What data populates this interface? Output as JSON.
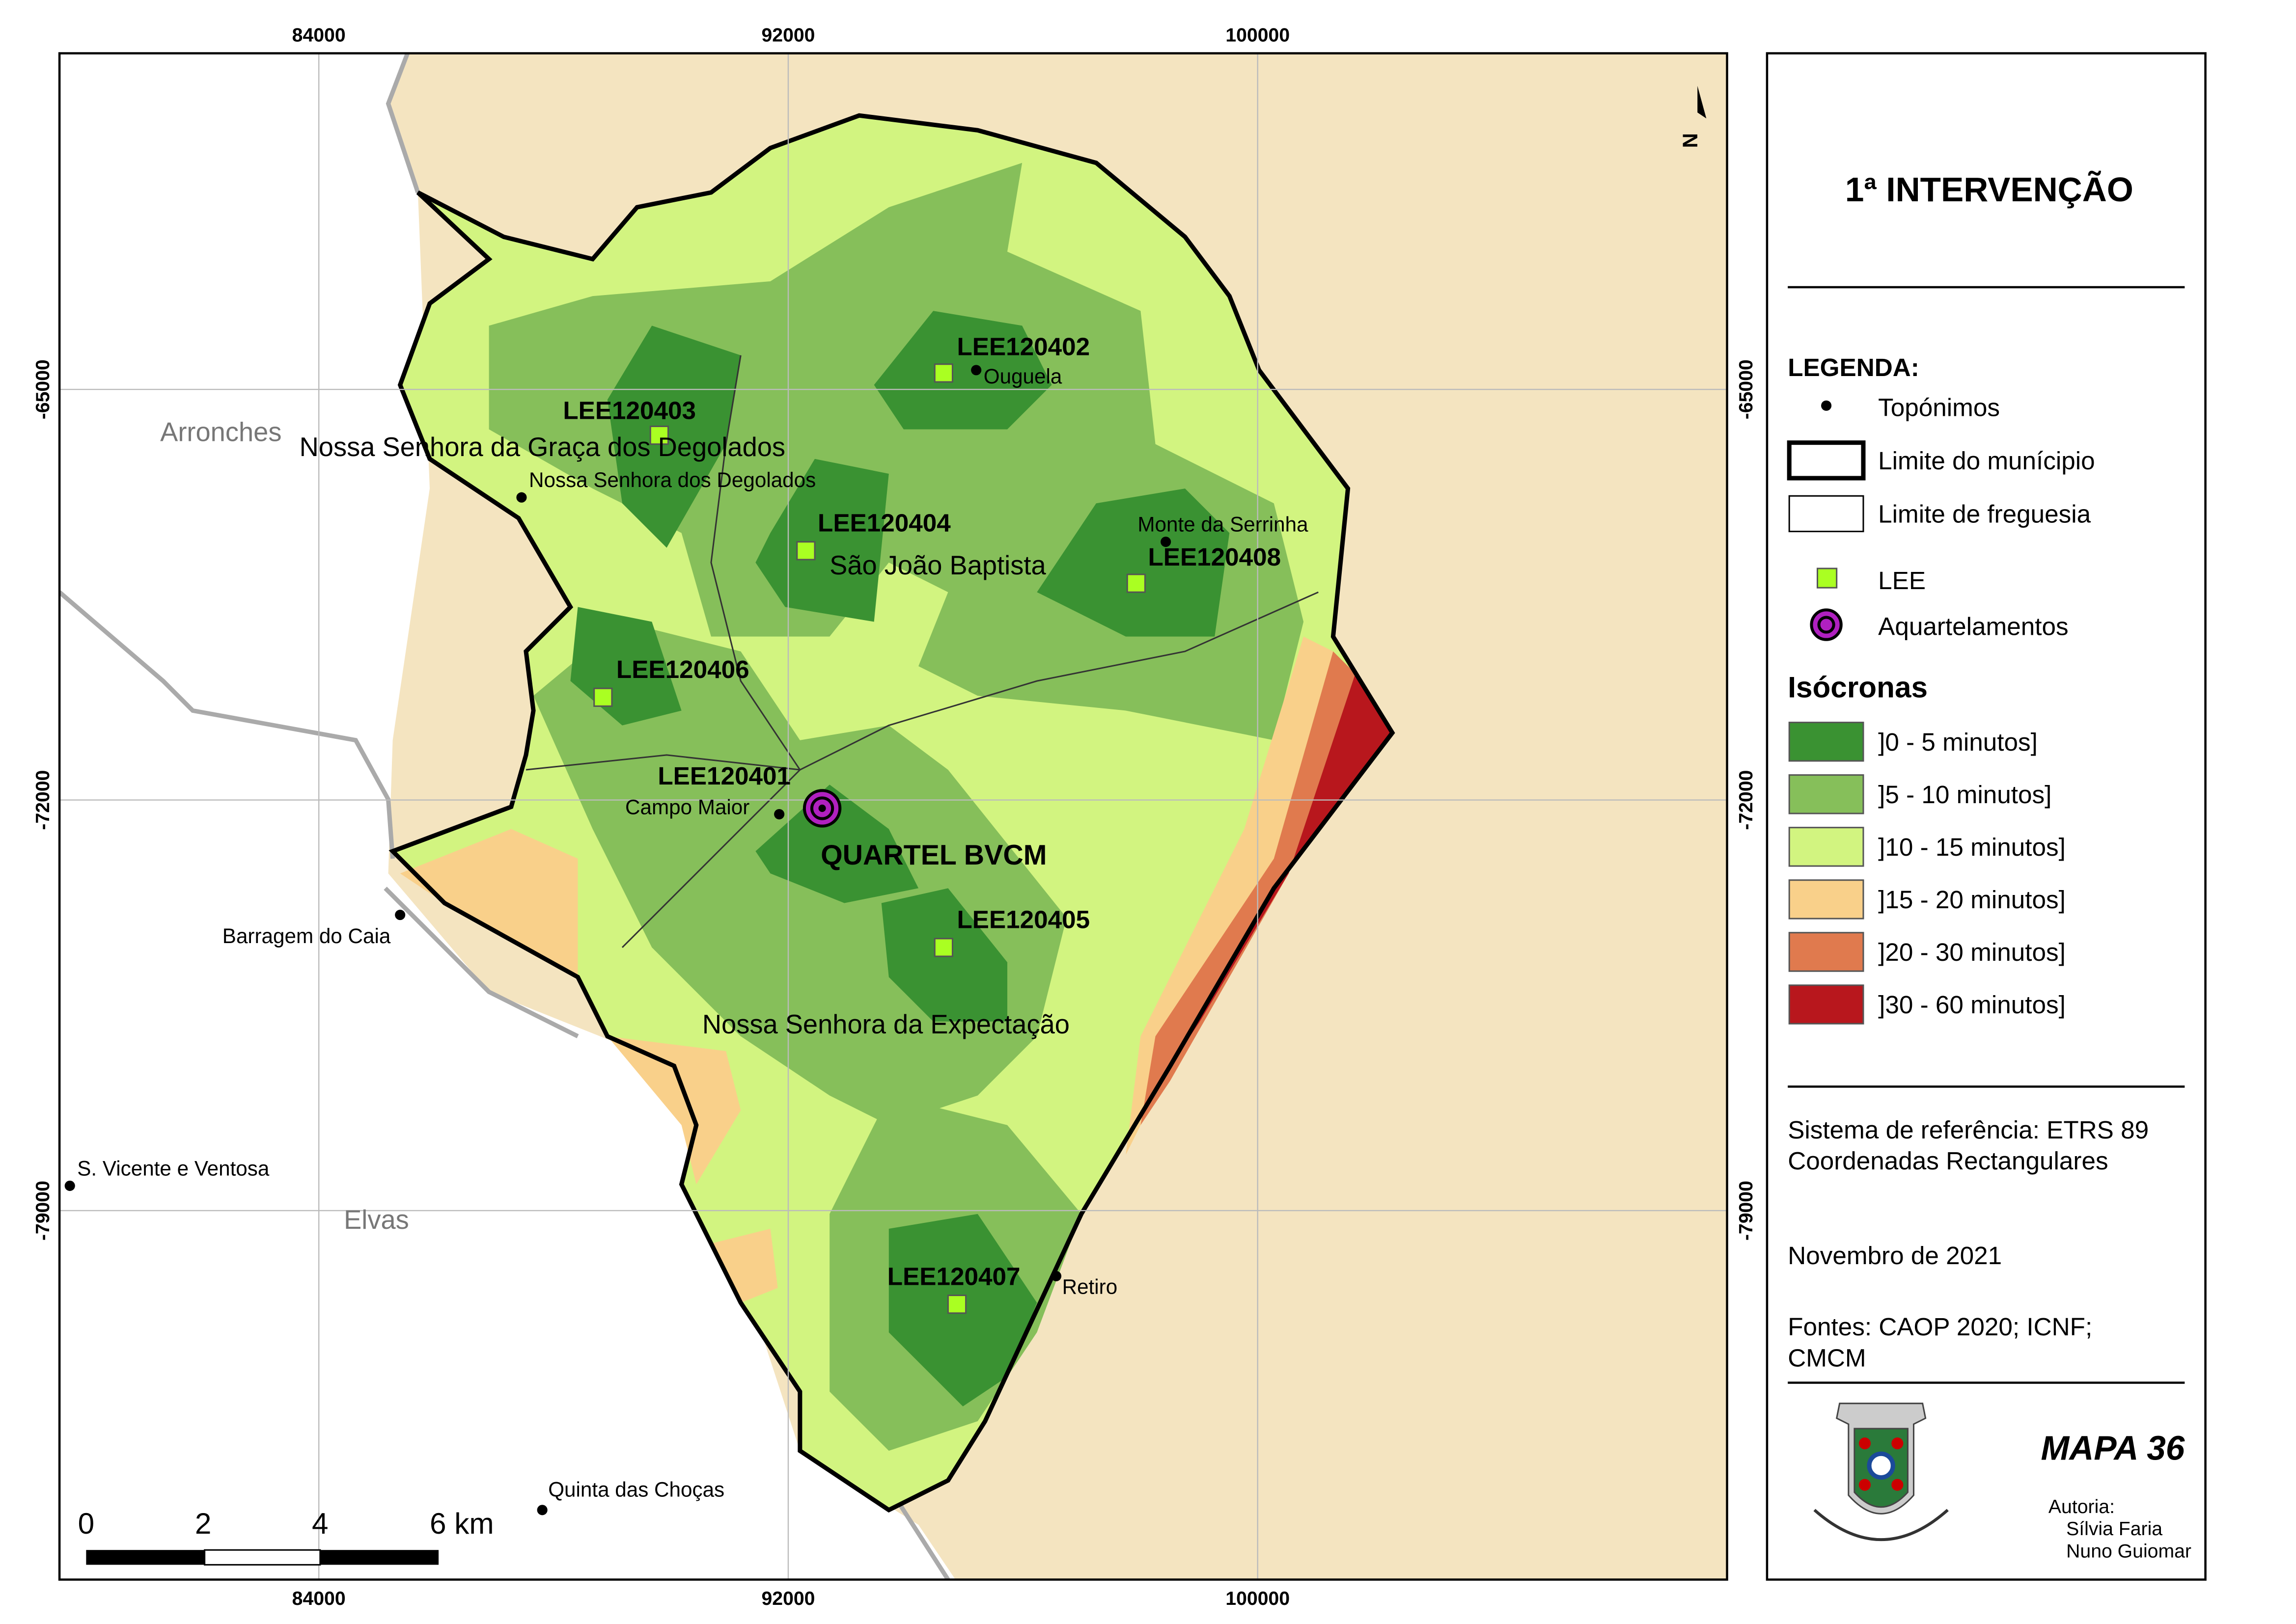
{
  "title": "1ª INTERVENÇÃO",
  "legend": {
    "heading": "LEGENDA:",
    "items": [
      "Topónimos",
      "Limite do munícipio",
      "Limite de freguesia",
      "LEE",
      "Aquartelamentos"
    ],
    "isochrones_heading": "Isócronas",
    "isochrones": [
      {
        "label": "]0 - 5 minutos]",
        "color": "#3a9232"
      },
      {
        "label": "]5 - 10 minutos]",
        "color": "#86bf5a"
      },
      {
        "label": "]10 - 15 minutos]",
        "color": "#d2f480"
      },
      {
        "label": "]15 - 20 minutos]",
        "color": "#f9d08a"
      },
      {
        "label": "]20 - 30 minutos]",
        "color": "#e07a4e"
      },
      {
        "label": "]30 - 60 minutos]",
        "color": "#b8171d"
      }
    ]
  },
  "info": {
    "reference": [
      "Sistema de referência: ETRS 89",
      "Coordenadas Rectangulares"
    ],
    "date": "Novembro de 2021",
    "sources": [
      "Fontes: CAOP 2020; ICNF;",
      "CMCM"
    ]
  },
  "map_number": "MAPA 36",
  "authors": {
    "heading": "Autoria:",
    "names": [
      "Sílvia Faria",
      "Nuno Guiomar"
    ]
  },
  "map": {
    "xticks": [
      84000,
      92000,
      100000
    ],
    "yticks": [
      -65000,
      -72000,
      -79000
    ],
    "xlim": [
      79580,
      108000
    ],
    "ylim": [
      -85290,
      -59270
    ],
    "scale_bar": [
      "0",
      "2",
      "4",
      "6 km"
    ],
    "lee": [
      "LEE120402",
      "LEE120403",
      "LEE120404",
      "LEE120408",
      "LEE120406",
      "LEE120401",
      "LEE120405",
      "LEE120407"
    ],
    "station": "QUARTEL BVCM",
    "places": [
      "Ouguela",
      "Nossa Senhora dos Degolados",
      "Monte da Serrinha",
      "Campo Maior",
      "Barragem do Caia",
      "S. Vicente e Ventosa",
      "Retiro",
      "Quinta das Choças"
    ],
    "parishes": [
      "Nossa Senhora da Graça dos Degolados",
      "São João Baptista",
      "Nossa Senhora da Expectação"
    ],
    "neighbours": [
      "Arronches",
      "Elvas"
    ]
  }
}
